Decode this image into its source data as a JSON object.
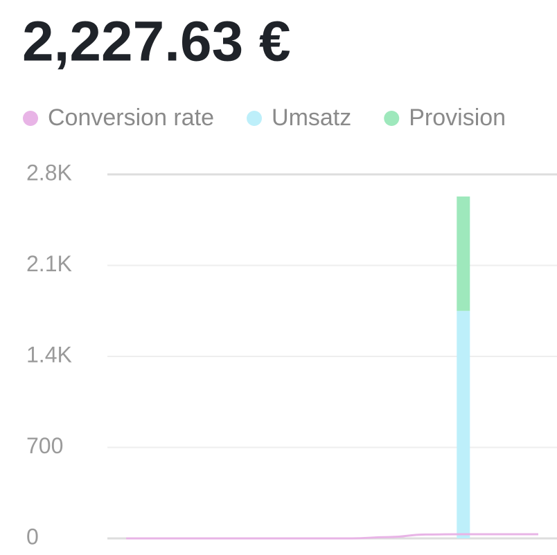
{
  "chart_data": {
    "type": "bar",
    "title": "2,227.63 €",
    "stacked": true,
    "grid": true,
    "categories": [
      null,
      null,
      null,
      null,
      null,
      null,
      null,
      null,
      null,
      null,
      null,
      null
    ],
    "series": [
      {
        "name": "Conversion rate",
        "color": "#e8b4e6",
        "type": "line",
        "values": [
          0,
          0,
          0,
          0,
          0,
          0,
          0,
          10,
          30,
          32,
          32,
          32
        ]
      },
      {
        "name": "Umsatz",
        "color": "#bdeffa",
        "values": [
          0,
          0,
          0,
          0,
          0,
          0,
          0,
          0,
          0,
          1750,
          0,
          0
        ]
      },
      {
        "name": "Provision",
        "color": "#9ee8bc",
        "values": [
          0,
          0,
          0,
          0,
          0,
          0,
          0,
          0,
          0,
          880,
          0,
          0
        ]
      }
    ],
    "ylim": [
      0,
      2800
    ],
    "yticks": [
      0,
      700,
      {
        "value": 1400,
        "label": "1.4K"
      },
      {
        "value": 2100,
        "label": "2.1K"
      },
      {
        "value": 2800,
        "label": "2.8K"
      }
    ]
  }
}
